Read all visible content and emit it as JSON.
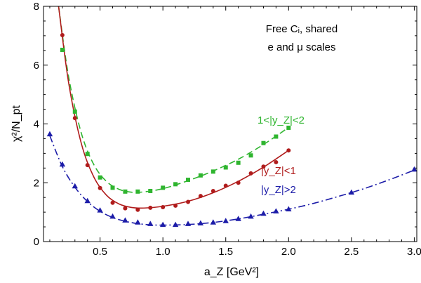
{
  "chart_data": {
    "type": "scatter",
    "xlabel": "a_Z [GeV²]",
    "ylabel": "χ²/N_pt",
    "xlim": [
      0.05,
      3.02
    ],
    "ylim": [
      0,
      8
    ],
    "xticks": [
      "0.5",
      "1.0",
      "1.5",
      "2.0",
      "2.5",
      "3.0"
    ],
    "yticks": [
      "0",
      "2",
      "4",
      "6",
      "8"
    ],
    "annotation_lines": [
      "Free Cᵢ, shared",
      "e and μ scales"
    ],
    "series": [
      {
        "name": "1<|y_Z|<2",
        "color": "#2fb52f",
        "marker": "square",
        "line": "dashed",
        "points": [
          [
            0.2,
            6.52
          ],
          [
            0.3,
            4.42
          ],
          [
            0.4,
            2.98
          ],
          [
            0.5,
            2.18
          ],
          [
            0.6,
            1.83
          ],
          [
            0.7,
            1.7
          ],
          [
            0.8,
            1.7
          ],
          [
            0.9,
            1.72
          ],
          [
            1.0,
            1.83
          ],
          [
            1.1,
            1.95
          ],
          [
            1.2,
            2.1
          ],
          [
            1.3,
            2.25
          ],
          [
            1.4,
            2.38
          ],
          [
            1.5,
            2.52
          ],
          [
            1.6,
            2.68
          ],
          [
            1.7,
            2.93
          ],
          [
            1.8,
            3.35
          ],
          [
            1.9,
            3.57
          ],
          [
            2.0,
            3.87
          ]
        ],
        "curve": [
          [
            0.17,
            8.0
          ],
          [
            0.25,
            5.6
          ],
          [
            0.35,
            3.7
          ],
          [
            0.45,
            2.62
          ],
          [
            0.55,
            2.05
          ],
          [
            0.65,
            1.78
          ],
          [
            0.75,
            1.68
          ],
          [
            0.85,
            1.69
          ],
          [
            1.0,
            1.8
          ],
          [
            1.2,
            2.07
          ],
          [
            1.4,
            2.4
          ],
          [
            1.6,
            2.8
          ],
          [
            1.8,
            3.3
          ],
          [
            2.0,
            3.88
          ]
        ]
      },
      {
        "name": "|y_Z|<1",
        "color": "#b01c1c",
        "marker": "circle",
        "line": "solid",
        "points": [
          [
            0.2,
            7.02
          ],
          [
            0.3,
            4.2
          ],
          [
            0.4,
            2.6
          ],
          [
            0.5,
            1.82
          ],
          [
            0.6,
            1.32
          ],
          [
            0.7,
            1.13
          ],
          [
            0.8,
            1.08
          ],
          [
            0.9,
            1.15
          ],
          [
            1.0,
            1.17
          ],
          [
            1.1,
            1.22
          ],
          [
            1.2,
            1.35
          ],
          [
            1.3,
            1.55
          ],
          [
            1.4,
            1.72
          ],
          [
            1.5,
            1.9
          ],
          [
            1.6,
            2.0
          ],
          [
            1.7,
            2.32
          ],
          [
            1.8,
            2.55
          ],
          [
            1.9,
            2.7
          ],
          [
            2.0,
            3.1
          ]
        ],
        "curve": [
          [
            0.17,
            8.0
          ],
          [
            0.25,
            5.4
          ],
          [
            0.35,
            3.35
          ],
          [
            0.45,
            2.2
          ],
          [
            0.55,
            1.58
          ],
          [
            0.65,
            1.28
          ],
          [
            0.75,
            1.16
          ],
          [
            0.85,
            1.14
          ],
          [
            1.0,
            1.2
          ],
          [
            1.2,
            1.37
          ],
          [
            1.4,
            1.66
          ],
          [
            1.6,
            2.05
          ],
          [
            1.8,
            2.53
          ],
          [
            2.0,
            3.1
          ]
        ]
      },
      {
        "name": "|y_Z|>2",
        "color": "#1c1ca8",
        "marker": "triangle",
        "line": "dashdot",
        "points": [
          [
            0.1,
            3.65
          ],
          [
            0.2,
            2.62
          ],
          [
            0.3,
            1.88
          ],
          [
            0.4,
            1.38
          ],
          [
            0.5,
            1.06
          ],
          [
            0.6,
            0.85
          ],
          [
            0.7,
            0.72
          ],
          [
            0.8,
            0.65
          ],
          [
            0.9,
            0.6
          ],
          [
            1.0,
            0.57
          ],
          [
            1.1,
            0.57
          ],
          [
            1.2,
            0.6
          ],
          [
            1.3,
            0.62
          ],
          [
            1.4,
            0.65
          ],
          [
            1.5,
            0.7
          ],
          [
            1.6,
            0.77
          ],
          [
            1.7,
            0.85
          ],
          [
            1.8,
            0.95
          ],
          [
            1.9,
            1.03
          ],
          [
            2.0,
            1.1
          ],
          [
            2.5,
            1.67
          ],
          [
            3.0,
            2.45
          ]
        ],
        "curve": [
          [
            0.1,
            3.6
          ],
          [
            0.2,
            2.55
          ],
          [
            0.3,
            1.85
          ],
          [
            0.4,
            1.36
          ],
          [
            0.5,
            1.03
          ],
          [
            0.6,
            0.82
          ],
          [
            0.7,
            0.69
          ],
          [
            0.8,
            0.61
          ],
          [
            0.9,
            0.57
          ],
          [
            1.0,
            0.56
          ],
          [
            1.2,
            0.58
          ],
          [
            1.4,
            0.65
          ],
          [
            1.6,
            0.77
          ],
          [
            1.8,
            0.93
          ],
          [
            2.0,
            1.1
          ],
          [
            2.2,
            1.3
          ],
          [
            2.4,
            1.54
          ],
          [
            2.6,
            1.8
          ],
          [
            2.8,
            2.1
          ],
          [
            3.0,
            2.43
          ]
        ]
      }
    ]
  }
}
